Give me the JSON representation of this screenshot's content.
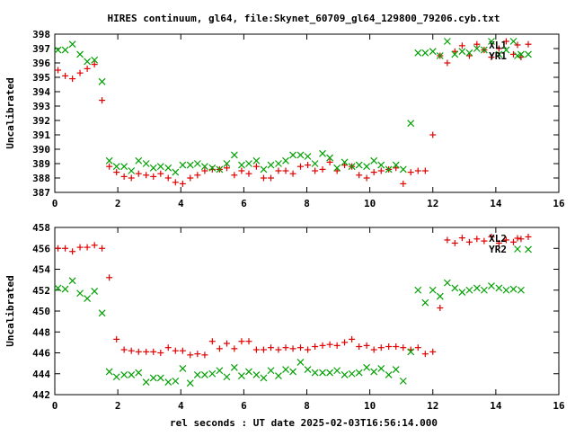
{
  "title": "HIRES continuum, gl64, file:Skynet_60709_gl64_129800_79206.cyb.txt",
  "xlabel": "rel seconds : UT date 2025-02-03T16:56:14.000",
  "colors": {
    "red": "#e00000",
    "green": "#00a000",
    "axis": "#000000"
  },
  "chart_data": [
    {
      "type": "scatter",
      "title": "HIRES continuum, gl64, file:Skynet_60709_gl64_129800_79206.cyb.txt",
      "xlabel": "",
      "ylabel": "Uncalibrated",
      "xlim": [
        0,
        16
      ],
      "ylim": [
        387,
        398
      ],
      "xticks": [
        0,
        2,
        4,
        6,
        8,
        10,
        12,
        14,
        16
      ],
      "yticks": [
        387,
        388,
        389,
        390,
        391,
        392,
        393,
        394,
        395,
        396,
        397,
        398
      ],
      "legend_position": "top-right",
      "series": [
        {
          "name": "XL1",
          "marker": "plus",
          "color": "#e00000",
          "x": [
            0.1,
            0.33,
            0.56,
            0.8,
            1.03,
            1.26,
            1.5,
            1.73,
            1.96,
            2.2,
            2.43,
            2.66,
            2.9,
            3.13,
            3.36,
            3.6,
            3.83,
            4.06,
            4.3,
            4.53,
            4.76,
            5.0,
            5.23,
            5.46,
            5.7,
            5.93,
            6.16,
            6.4,
            6.63,
            6.86,
            7.1,
            7.33,
            7.56,
            7.8,
            8.03,
            8.26,
            8.5,
            8.73,
            8.96,
            9.2,
            9.43,
            9.66,
            9.9,
            10.13,
            10.36,
            10.6,
            10.83,
            11.06,
            11.3,
            11.53,
            11.76,
            12.0,
            12.23,
            12.46,
            12.7,
            12.93,
            13.16,
            13.4,
            13.63,
            13.86,
            14.1,
            14.33,
            14.56,
            14.8,
            15.03
          ],
          "y": [
            395.5,
            395.1,
            394.9,
            395.3,
            395.6,
            395.9,
            393.4,
            388.8,
            388.4,
            388.1,
            388.0,
            388.3,
            388.2,
            388.1,
            388.3,
            388.0,
            387.7,
            387.6,
            388.0,
            388.2,
            388.5,
            388.6,
            388.6,
            388.7,
            388.2,
            388.5,
            388.3,
            388.8,
            388.0,
            388.0,
            388.5,
            388.5,
            388.3,
            388.8,
            388.9,
            388.5,
            388.6,
            389.1,
            388.5,
            388.9,
            388.8,
            388.2,
            388.0,
            388.4,
            388.5,
            388.6,
            388.7,
            387.6,
            388.4,
            388.5,
            388.5,
            391.0,
            396.5,
            396.0,
            396.8,
            397.2,
            396.5,
            397.3,
            396.9,
            396.4,
            397.0,
            397.5,
            396.6,
            396.4,
            397.3
          ],
          "note_red": true
        },
        {
          "name": "YR1",
          "marker": "cross",
          "color": "#00a000",
          "x": [
            0.1,
            0.33,
            0.56,
            0.8,
            1.03,
            1.26,
            1.5,
            1.73,
            1.96,
            2.2,
            2.43,
            2.66,
            2.9,
            3.13,
            3.36,
            3.6,
            3.83,
            4.06,
            4.3,
            4.53,
            4.76,
            5.0,
            5.23,
            5.46,
            5.7,
            5.93,
            6.16,
            6.4,
            6.63,
            6.86,
            7.1,
            7.33,
            7.56,
            7.8,
            8.03,
            8.26,
            8.5,
            8.73,
            8.96,
            9.2,
            9.43,
            9.66,
            9.9,
            10.13,
            10.36,
            10.6,
            10.83,
            11.06,
            11.3,
            11.53,
            11.76,
            12.0,
            12.23,
            12.46,
            12.7,
            12.93,
            13.16,
            13.4,
            13.63,
            13.86,
            14.1,
            14.33,
            14.56,
            14.8,
            15.03
          ],
          "y": [
            396.9,
            396.9,
            397.3,
            396.6,
            396.1,
            396.2,
            394.7,
            389.2,
            388.8,
            388.8,
            388.5,
            389.2,
            389.0,
            388.7,
            388.8,
            388.7,
            388.4,
            388.9,
            388.9,
            389.0,
            388.8,
            388.7,
            388.6,
            389.0,
            389.6,
            388.9,
            389.0,
            389.2,
            388.6,
            388.9,
            389.0,
            389.2,
            389.6,
            389.6,
            389.5,
            389.0,
            389.7,
            389.4,
            388.7,
            389.1,
            388.8,
            388.9,
            388.8,
            389.2,
            388.9,
            388.6,
            388.9,
            388.6,
            391.8,
            396.7,
            396.7,
            396.8,
            396.5,
            397.5,
            396.6,
            396.8,
            396.7,
            397.0,
            396.9,
            397.5,
            396.6,
            396.9,
            397.5,
            396.6,
            396.6
          ]
        }
      ]
    },
    {
      "type": "scatter",
      "title": "",
      "xlabel": "rel seconds : UT date 2025-02-03T16:56:14.000",
      "ylabel": "Uncalibrated",
      "xlim": [
        0,
        16
      ],
      "ylim": [
        442,
        458
      ],
      "xticks": [
        0,
        2,
        4,
        6,
        8,
        10,
        12,
        14,
        16
      ],
      "yticks": [
        442,
        444,
        446,
        448,
        450,
        452,
        454,
        456,
        458
      ],
      "legend_position": "top-right",
      "series": [
        {
          "name": "XL2",
          "marker": "plus",
          "color": "#e00000",
          "x": [
            0.1,
            0.33,
            0.56,
            0.8,
            1.03,
            1.26,
            1.5,
            1.73,
            1.96,
            2.2,
            2.43,
            2.66,
            2.9,
            3.13,
            3.36,
            3.6,
            3.83,
            4.06,
            4.3,
            4.53,
            4.76,
            5.0,
            5.23,
            5.46,
            5.7,
            5.93,
            6.16,
            6.4,
            6.63,
            6.86,
            7.1,
            7.33,
            7.56,
            7.8,
            8.03,
            8.26,
            8.5,
            8.73,
            8.96,
            9.2,
            9.43,
            9.66,
            9.9,
            10.13,
            10.36,
            10.6,
            10.83,
            11.06,
            11.3,
            11.53,
            11.76,
            12.0,
            12.23,
            12.46,
            12.7,
            12.93,
            13.16,
            13.4,
            13.63,
            13.86,
            14.1,
            14.33,
            14.56,
            14.8,
            15.03
          ],
          "y": [
            456.0,
            456.0,
            455.7,
            456.1,
            456.1,
            456.3,
            456.0,
            453.2,
            447.3,
            446.3,
            446.2,
            446.1,
            446.1,
            446.1,
            446.0,
            446.5,
            446.2,
            446.2,
            445.8,
            445.9,
            445.8,
            447.1,
            446.4,
            446.9,
            446.4,
            447.1,
            447.1,
            446.3,
            446.3,
            446.5,
            446.3,
            446.5,
            446.4,
            446.5,
            446.3,
            446.6,
            446.7,
            446.8,
            446.7,
            447.0,
            447.3,
            446.6,
            446.7,
            446.3,
            446.5,
            446.6,
            446.6,
            446.5,
            446.3,
            446.5,
            445.9,
            446.1,
            450.3,
            456.8,
            456.5,
            457.0,
            456.6,
            456.9,
            456.7,
            457.1,
            456.5,
            456.8,
            456.6,
            456.9,
            457.1
          ]
        },
        {
          "name": "YR2",
          "marker": "cross",
          "color": "#00a000",
          "x": [
            0.1,
            0.33,
            0.56,
            0.8,
            1.03,
            1.26,
            1.5,
            1.73,
            1.96,
            2.2,
            2.43,
            2.66,
            2.9,
            3.13,
            3.36,
            3.6,
            3.83,
            4.06,
            4.3,
            4.53,
            4.76,
            5.0,
            5.23,
            5.46,
            5.7,
            5.93,
            6.16,
            6.4,
            6.63,
            6.86,
            7.1,
            7.33,
            7.56,
            7.8,
            8.03,
            8.26,
            8.5,
            8.73,
            8.96,
            9.2,
            9.43,
            9.66,
            9.9,
            10.13,
            10.36,
            10.6,
            10.83,
            11.06,
            11.3,
            11.53,
            11.76,
            12.0,
            12.23,
            12.46,
            12.7,
            12.93,
            13.16,
            13.4,
            13.63,
            13.86,
            14.1,
            14.33,
            14.56,
            14.8,
            15.03
          ],
          "y": [
            452.2,
            452.1,
            452.9,
            451.7,
            451.2,
            451.9,
            449.8,
            444.2,
            443.7,
            443.9,
            443.9,
            444.1,
            443.2,
            443.6,
            443.6,
            443.2,
            443.3,
            444.5,
            443.1,
            443.9,
            443.9,
            444.0,
            444.3,
            443.7,
            444.6,
            443.8,
            444.2,
            443.9,
            443.6,
            444.3,
            443.8,
            444.4,
            444.2,
            445.1,
            444.4,
            444.1,
            444.1,
            444.1,
            444.3,
            443.9,
            444.0,
            444.1,
            444.6,
            444.2,
            444.5,
            443.9,
            444.4,
            443.3,
            446.1,
            452.0,
            450.8,
            452.0,
            451.4,
            452.7,
            452.2,
            451.8,
            452.0,
            452.2,
            452.0,
            452.4,
            452.2,
            452.0,
            452.1,
            452.0,
            455.9
          ]
        }
      ]
    }
  ]
}
